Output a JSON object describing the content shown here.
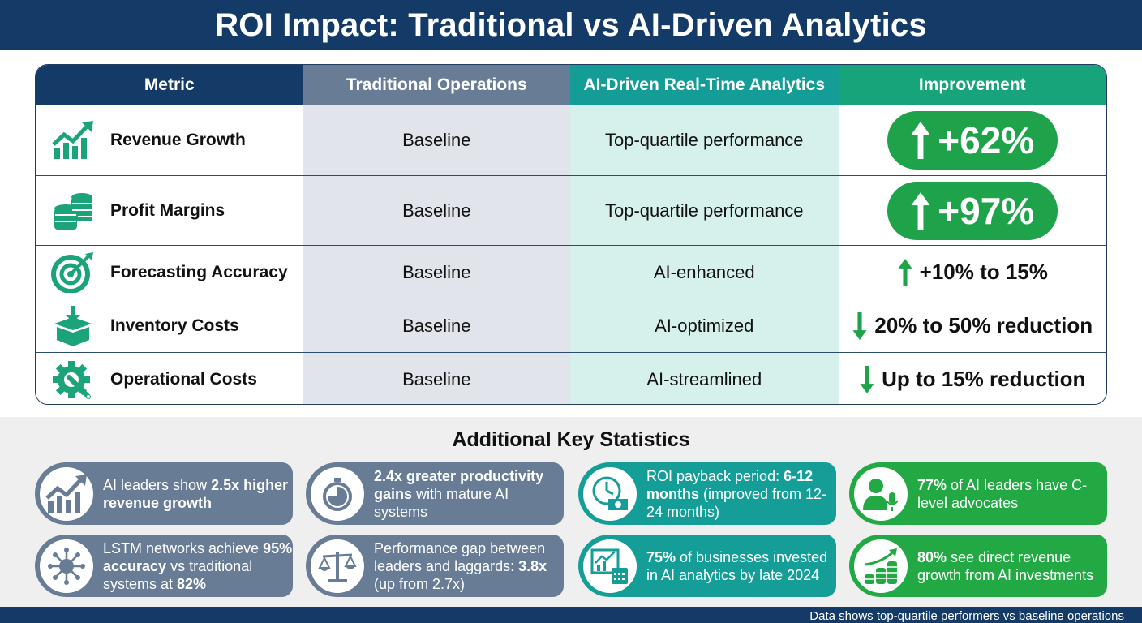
{
  "header": {
    "title": "ROI Impact: Traditional vs AI-Driven Analytics"
  },
  "colors": {
    "navy": "#143a68",
    "slate": "#687c95",
    "teal": "#149c96",
    "green_header": "#17a47a",
    "green_pill": "#1ea34a",
    "icon_green": "#1ba37a"
  },
  "table": {
    "columns": [
      "Metric",
      "Traditional Operations",
      "AI-Driven Real-Time Analytics",
      "Improvement"
    ],
    "rows": [
      {
        "icon": "growth-chart-icon",
        "metric": "Revenue Growth",
        "traditional": "Baseline",
        "ai": "Top-quartile performance",
        "direction": "up",
        "improvement": "+62%",
        "style": "pill"
      },
      {
        "icon": "coin-stacks-icon",
        "metric": "Profit Margins",
        "traditional": "Baseline",
        "ai": "Top-quartile performance",
        "direction": "up",
        "improvement": "+97%",
        "style": "pill"
      },
      {
        "icon": "target-icon",
        "metric": "Forecasting Accuracy",
        "traditional": "Baseline",
        "ai": "AI-enhanced",
        "direction": "up",
        "improvement": "+10% to 15%",
        "style": "text"
      },
      {
        "icon": "box-download-icon",
        "metric": "Inventory Costs",
        "traditional": "Baseline",
        "ai": "AI-optimized",
        "direction": "down",
        "improvement": "20% to 50% reduction",
        "style": "text"
      },
      {
        "icon": "gear-wrench-icon",
        "metric": "Operational Costs",
        "traditional": "Baseline",
        "ai": "AI-streamlined",
        "direction": "down",
        "improvement": "Up to 15% reduction",
        "style": "text"
      }
    ]
  },
  "stats": {
    "title": "Additional Key Statistics",
    "cards": [
      {
        "icon": "growth-chart-icon",
        "color": "slate",
        "parts": [
          [
            "AI leaders show ",
            false
          ],
          [
            "2.5x higher revenue growth",
            true
          ]
        ]
      },
      {
        "icon": "stopwatch-icon",
        "color": "slate",
        "parts": [
          [
            "2.4x greater productivity gains",
            true
          ],
          [
            " with mature AI systems",
            false
          ]
        ]
      },
      {
        "icon": "clock-money-icon",
        "color": "teal",
        "parts": [
          [
            "ROI payback period: ",
            false
          ],
          [
            "6-12 months",
            true
          ],
          [
            " (improved from 12-24 months)",
            false
          ]
        ]
      },
      {
        "icon": "executive-speaker-icon",
        "color": "green",
        "parts": [
          [
            "77%",
            true
          ],
          [
            " of AI leaders have C-level advocates",
            false
          ]
        ]
      },
      {
        "icon": "neural-network-icon",
        "color": "slate",
        "parts": [
          [
            "LSTM networks achieve ",
            false
          ],
          [
            "95% accuracy",
            true
          ],
          [
            " vs traditional systems at ",
            false
          ],
          [
            "82%",
            true
          ]
        ]
      },
      {
        "icon": "balance-scale-icon",
        "color": "slate",
        "parts": [
          [
            "Performance gap between leaders and laggards: ",
            false
          ],
          [
            "3.8x",
            true
          ],
          [
            " (up from 2.7x)",
            false
          ]
        ]
      },
      {
        "icon": "chart-calendar-icon",
        "color": "teal",
        "parts": [
          [
            "75%",
            true
          ],
          [
            " of businesses invested in AI analytics by late 2024",
            false
          ]
        ]
      },
      {
        "icon": "coins-growth-icon",
        "color": "green",
        "parts": [
          [
            "80%",
            true
          ],
          [
            " see direct revenue growth from AI investments",
            false
          ]
        ]
      }
    ]
  },
  "footer": {
    "note": "Data shows top-quartile performers vs baseline operations"
  }
}
